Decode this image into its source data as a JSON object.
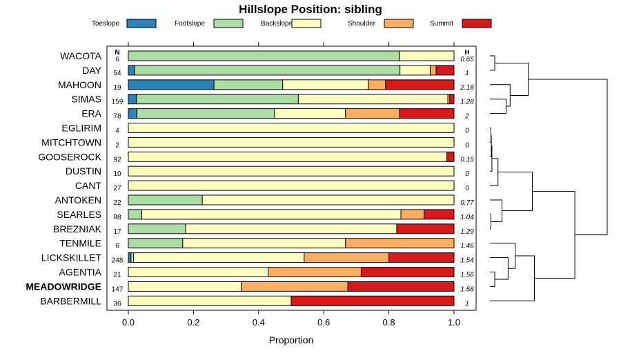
{
  "chart_data": {
    "type": "stacked-bar-horizontal",
    "title": "Hillslope Position: sibling",
    "xlabel": "Proportion",
    "xlim": [
      0,
      1
    ],
    "x_ticks": [
      "0.0",
      "0.2",
      "0.4",
      "0.6",
      "0.8",
      "1.0"
    ],
    "x_tick_values": [
      0,
      0.2,
      0.4,
      0.6,
      0.8,
      1.0
    ],
    "n_header": "N",
    "h_header": "H",
    "legend": [
      {
        "name": "Toeslope",
        "color": "#2b83ba"
      },
      {
        "name": "Footslope",
        "color": "#abdda4"
      },
      {
        "name": "Backslope",
        "color": "#ffffbf"
      },
      {
        "name": "Shoulder",
        "color": "#fdae61"
      },
      {
        "name": "Summit",
        "color": "#d7191c"
      }
    ],
    "rows": [
      {
        "label": "WACOTA",
        "bold": false,
        "n": "6",
        "h": "0.65",
        "values": [
          0,
          0.833,
          0.167,
          0,
          0
        ]
      },
      {
        "label": "DAY",
        "bold": false,
        "n": "54",
        "h": "1",
        "values": [
          0.019,
          0.815,
          0.093,
          0.018,
          0.055
        ]
      },
      {
        "label": "MAHOON",
        "bold": false,
        "n": "19",
        "h": "2.18",
        "values": [
          0.263,
          0.211,
          0.263,
          0.053,
          0.21
        ]
      },
      {
        "label": "SIMAS",
        "bold": false,
        "n": "159",
        "h": "1.28",
        "values": [
          0.025,
          0.497,
          0.459,
          0.006,
          0.013
        ]
      },
      {
        "label": "ERA",
        "bold": false,
        "n": "78",
        "h": "2",
        "values": [
          0.026,
          0.423,
          0.218,
          0.166,
          0.167
        ]
      },
      {
        "label": "EGLIRIM",
        "bold": false,
        "n": "4",
        "h": "0",
        "values": [
          0,
          0,
          1,
          0,
          0
        ]
      },
      {
        "label": "MITCHTOWN",
        "bold": false,
        "n": "2",
        "h": "0",
        "values": [
          0,
          0,
          1,
          0,
          0
        ]
      },
      {
        "label": "GOOSEROCK",
        "bold": false,
        "n": "92",
        "h": "0.15",
        "values": [
          0,
          0,
          0.978,
          0,
          0.022
        ]
      },
      {
        "label": "DUSTIN",
        "bold": false,
        "n": "10",
        "h": "0",
        "values": [
          0,
          0,
          1,
          0,
          0
        ]
      },
      {
        "label": "CANT",
        "bold": false,
        "n": "27",
        "h": "0",
        "values": [
          0,
          0,
          1,
          0,
          0
        ]
      },
      {
        "label": "ANTOKEN",
        "bold": false,
        "n": "22",
        "h": "0.77",
        "values": [
          0,
          0.227,
          0.773,
          0,
          0
        ]
      },
      {
        "label": "SEARLES",
        "bold": false,
        "n": "98",
        "h": "1.04",
        "values": [
          0,
          0.041,
          0.796,
          0.071,
          0.092
        ]
      },
      {
        "label": "BREZNIAK",
        "bold": false,
        "n": "17",
        "h": "1.29",
        "values": [
          0,
          0.176,
          0.648,
          0,
          0.176
        ]
      },
      {
        "label": "TENMILE",
        "bold": false,
        "n": "6",
        "h": "1.46",
        "values": [
          0,
          0.167,
          0.5,
          0.333,
          0
        ]
      },
      {
        "label": "LICKSKILLET",
        "bold": false,
        "n": "248",
        "h": "1.54",
        "values": [
          0.008,
          0.008,
          0.524,
          0.26,
          0.2
        ]
      },
      {
        "label": "AGENTIA",
        "bold": false,
        "n": "21",
        "h": "1.56",
        "values": [
          0,
          0,
          0.429,
          0.286,
          0.285
        ]
      },
      {
        "label": "MEADOWRIDGE",
        "bold": true,
        "n": "147",
        "h": "1.58",
        "values": [
          0,
          0,
          0.347,
          0.327,
          0.326
        ]
      },
      {
        "label": "BARBERMILL",
        "bold": false,
        "n": "36",
        "h": "1",
        "values": [
          0,
          0,
          0.5,
          0,
          0.5
        ]
      }
    ],
    "dendrogram": {
      "description": "hierarchical clustering of rows; merge heights in arbitrary distance units (0 = leaf, larger = further right)",
      "merges": [
        {
          "a": 0,
          "b": 1,
          "height": 0.24
        },
        {
          "a": 3,
          "b": 4,
          "height": 0.8
        },
        {
          "a": 2,
          "b": "m1",
          "height": 1.0
        },
        {
          "a": "m0",
          "b": "m2",
          "height": 1.9
        },
        {
          "a": 5,
          "b": 6,
          "height": 0.05
        },
        {
          "a": "m4",
          "b": 7,
          "height": 0.07
        },
        {
          "a": "m5",
          "b": 8,
          "height": 0.1
        },
        {
          "a": "m6",
          "b": 9,
          "height": 0.4
        },
        {
          "a": 11,
          "b": 12,
          "height": 0.05
        },
        {
          "a": 10,
          "b": "m8",
          "height": 0.6
        },
        {
          "a": "m7",
          "b": "m9",
          "height": 2.1
        },
        {
          "a": 15,
          "b": 16,
          "height": 0.24
        },
        {
          "a": 14,
          "b": "m11",
          "height": 0.9
        },
        {
          "a": 13,
          "b": "m12",
          "height": 1.25
        },
        {
          "a": "m13",
          "b": 17,
          "height": 2.2
        },
        {
          "a": "m10",
          "b": "m14",
          "height": 4.2
        },
        {
          "a": "m3",
          "b": "m15",
          "height": 5.8
        }
      ]
    }
  }
}
